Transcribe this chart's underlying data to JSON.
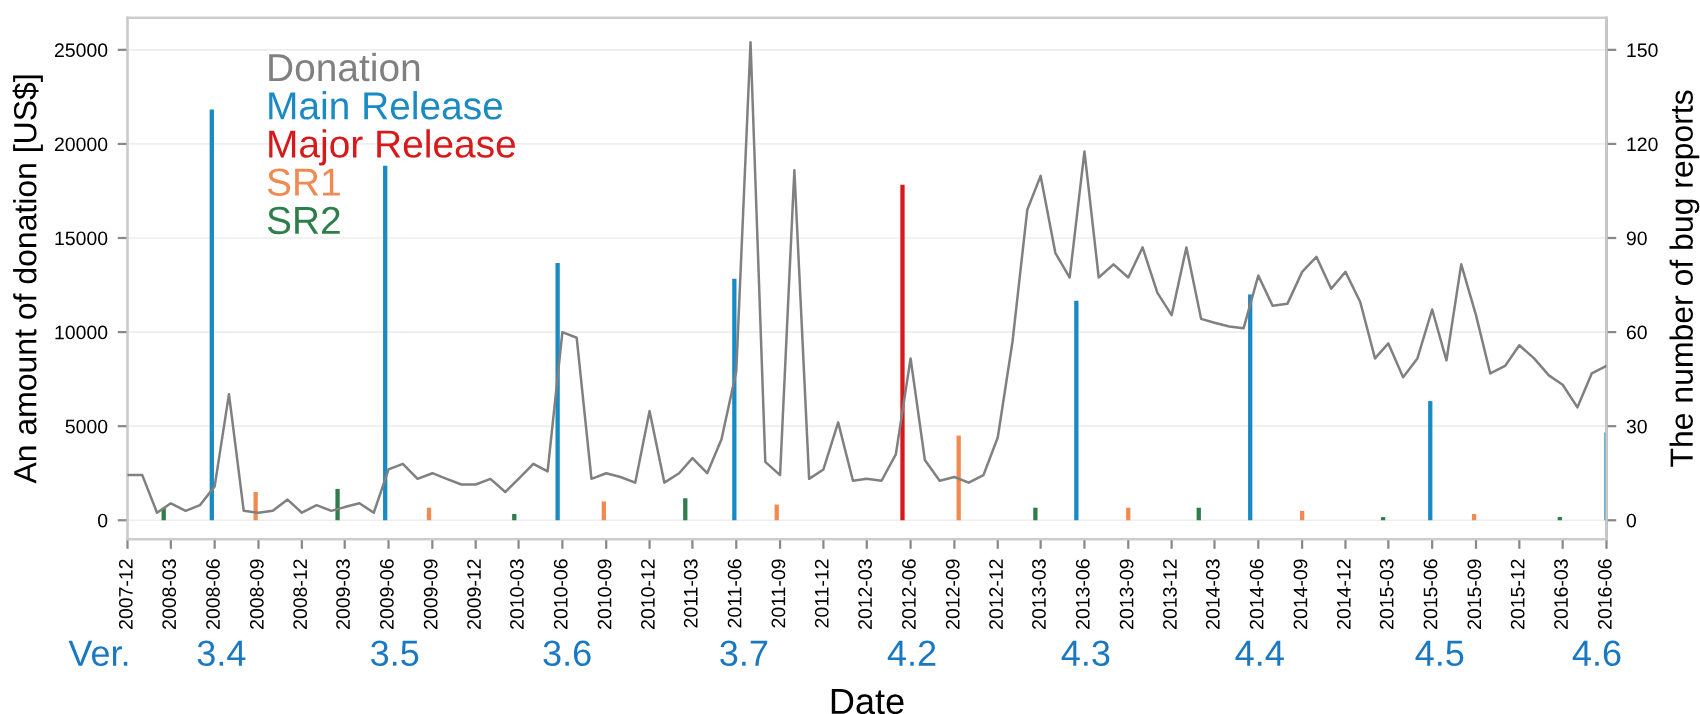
{
  "chart_data": {
    "type": "line",
    "xlabel": "Date",
    "ylabel": "An amount of donation [US$]",
    "y2label": "The number of bug reports",
    "x": [
      "2007-12",
      "2008-01",
      "2008-02",
      "2008-03",
      "2008-04",
      "2008-05",
      "2008-06",
      "2008-07",
      "2008-08",
      "2008-09",
      "2008-10",
      "2008-11",
      "2008-12",
      "2009-01",
      "2009-02",
      "2009-03",
      "2009-04",
      "2009-05",
      "2009-06",
      "2009-07",
      "2009-08",
      "2009-09",
      "2009-10",
      "2009-11",
      "2009-12",
      "2010-01",
      "2010-02",
      "2010-03",
      "2010-04",
      "2010-05",
      "2010-06",
      "2010-07",
      "2010-08",
      "2010-09",
      "2010-10",
      "2010-11",
      "2010-12",
      "2011-01",
      "2011-02",
      "2011-03",
      "2011-04",
      "2011-05",
      "2011-06",
      "2011-07",
      "2011-08",
      "2011-09",
      "2011-10",
      "2011-11",
      "2011-12",
      "2012-01",
      "2012-02",
      "2012-03",
      "2012-04",
      "2012-05",
      "2012-06",
      "2012-07",
      "2012-08",
      "2012-09",
      "2012-10",
      "2012-11",
      "2012-12",
      "2013-01",
      "2013-02",
      "2013-03",
      "2013-04",
      "2013-05",
      "2013-06",
      "2013-07",
      "2013-08",
      "2013-09",
      "2013-10",
      "2013-11",
      "2013-12",
      "2014-01",
      "2014-02",
      "2014-03",
      "2014-04",
      "2014-05",
      "2014-06",
      "2014-07",
      "2014-08",
      "2014-09",
      "2014-10",
      "2014-11",
      "2014-12",
      "2015-01",
      "2015-02",
      "2015-03",
      "2015-04",
      "2015-05",
      "2015-06",
      "2015-07",
      "2015-08",
      "2015-09",
      "2015-10",
      "2015-11",
      "2015-12",
      "2016-01",
      "2016-02",
      "2016-03",
      "2016-04",
      "2016-05",
      "2016-06"
    ],
    "series": [
      {
        "name": "Donation",
        "color": "#808080",
        "values": [
          2400,
          2400,
          400,
          900,
          500,
          800,
          1800,
          6700,
          500,
          400,
          500,
          1100,
          400,
          800,
          500,
          700,
          900,
          400,
          2700,
          3000,
          2200,
          2500,
          2200,
          1900,
          1900,
          2200,
          1500,
          2200,
          3000,
          2600,
          10000,
          9700,
          2200,
          2500,
          2300,
          2000,
          5800,
          2000,
          2500,
          3300,
          2500,
          4300,
          7900,
          25400,
          3100,
          2400,
          18600,
          2200,
          2700,
          5200,
          2100,
          2200,
          2100,
          3500,
          8600,
          3200,
          2100,
          2300,
          2000,
          2400,
          4400,
          9500,
          16500,
          18300,
          14200,
          12900,
          19600,
          12900,
          13600,
          12900,
          14500,
          12100,
          10900,
          14500,
          10700,
          10500,
          10300,
          10200,
          13000,
          11400,
          11500,
          13200,
          14000,
          12300,
          13200,
          11600,
          8600,
          9400,
          7600,
          8600,
          11200,
          8500,
          13600,
          10900,
          7800,
          8200,
          9300,
          8600,
          7700,
          7200,
          6000,
          7800,
          8200
        ]
      },
      {
        "name": "Main Release",
        "type": "bar",
        "axis": "y2",
        "color": "#1a8ac4",
        "x": [
          "2008-05-26",
          "2009-05-25",
          "2010-05-22",
          "2011-05-28",
          "2013-05-15",
          "2014-05-15",
          "2015-05-28",
          "2016-06-01"
        ],
        "values": [
          131,
          113,
          82,
          77,
          70,
          72,
          38,
          28
        ]
      },
      {
        "name": "Major Release",
        "type": "bar",
        "axis": "y2",
        "color": "#d7191c",
        "x": [
          "2012-05-15"
        ],
        "values": [
          107
        ]
      },
      {
        "name": "SR1",
        "type": "bar",
        "axis": "y2",
        "color": "#f08a50",
        "x": [
          "2008-08-26",
          "2009-08-25",
          "2010-08-27",
          "2011-08-25",
          "2012-09-10",
          "2013-09-01",
          "2014-09-01",
          "2015-08-28"
        ],
        "values": [
          9,
          4,
          6,
          5,
          27,
          4,
          3,
          2
        ]
      },
      {
        "name": "SR2",
        "type": "bar",
        "axis": "y2",
        "color": "#2e7d4a",
        "x": [
          "2008-02-15",
          "2009-02-14",
          "2010-02-20",
          "2011-02-14",
          "2013-02-18",
          "2014-01-27",
          "2015-02-18",
          "2016-02-24"
        ],
        "values": [
          4,
          10,
          2,
          7,
          4,
          4,
          1,
          1
        ]
      }
    ],
    "xlim": [
      "2007-12",
      "2016-06"
    ],
    "xticks": [
      "2007-12",
      "2008-03",
      "2008-06",
      "2008-09",
      "2008-12",
      "2009-03",
      "2009-06",
      "2009-09",
      "2009-12",
      "2010-03",
      "2010-06",
      "2010-09",
      "2010-12",
      "2011-03",
      "2011-06",
      "2011-09",
      "2011-12",
      "2012-03",
      "2012-06",
      "2012-09",
      "2012-12",
      "2013-03",
      "2013-06",
      "2013-09",
      "2013-12",
      "2014-03",
      "2014-06",
      "2014-09",
      "2014-12",
      "2015-03",
      "2015-06",
      "2015-09",
      "2015-12",
      "2016-03",
      "2016-06"
    ],
    "ylim": [
      -1000,
      26700
    ],
    "yticks": [
      0,
      5000,
      10000,
      15000,
      20000,
      25000
    ],
    "y2lim": [
      -6,
      160.2
    ],
    "y2ticks": [
      0,
      30,
      60,
      90,
      120,
      150
    ],
    "grid": true,
    "legend": "top left",
    "annotations": [
      "Ver.",
      "3.4",
      "3.5",
      "3.6",
      "3.7",
      "4.2",
      "4.3",
      "4.4",
      "4.5",
      "4.6"
    ]
  }
}
